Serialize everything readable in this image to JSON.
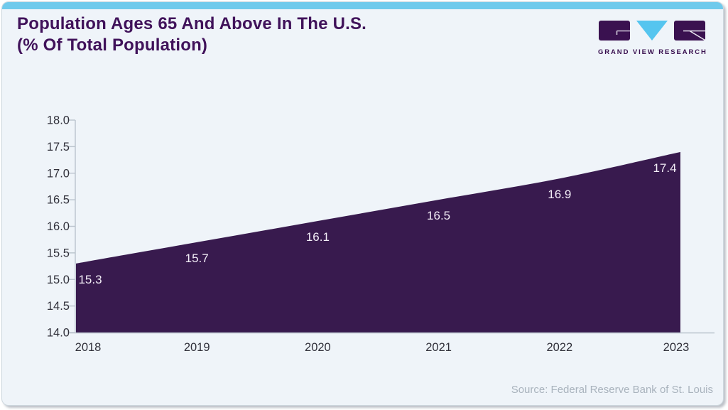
{
  "header": {
    "title_line1": "Population Ages 65 And Above In The U.S.",
    "title_line2": "(% Of Total Population)",
    "logo": {
      "text": "GRAND VIEW RESEARCH"
    }
  },
  "chart_data": {
    "type": "area",
    "title": "Population Ages 65 And Above In The U.S. (% Of Total Population)",
    "categories": [
      "2018",
      "2019",
      "2020",
      "2021",
      "2022",
      "2023"
    ],
    "values": [
      15.3,
      15.7,
      16.1,
      16.5,
      16.9,
      17.4
    ],
    "value_labels": [
      "15.3",
      "15.7",
      "16.1",
      "16.5",
      "16.9",
      "17.4"
    ],
    "xlabel": "",
    "ylabel": "",
    "ylim": [
      14.0,
      18.0
    ],
    "ytick_labels": [
      "14.0",
      "14.5",
      "15.0",
      "15.5",
      "16.0",
      "16.5",
      "17.0",
      "17.5",
      "18.0"
    ],
    "grid": false,
    "legend": "none",
    "area_color": "#381A4E",
    "value_label_color": "#F3EEF7",
    "axis_color": "#BAC3CD",
    "tick_label_color": "#30303A"
  },
  "footer": {
    "source": "Source: Federal Reserve Bank of St. Louis"
  },
  "theme": {
    "accent_bar": "#70CAEC",
    "logo_blue": "#55C5EF",
    "brand_purple": "#3A1150",
    "title_color": "#40125A",
    "card_bg": "#EFF4F9",
    "card_border": "#CDD7DE",
    "source_color": "#A9B3BD"
  }
}
